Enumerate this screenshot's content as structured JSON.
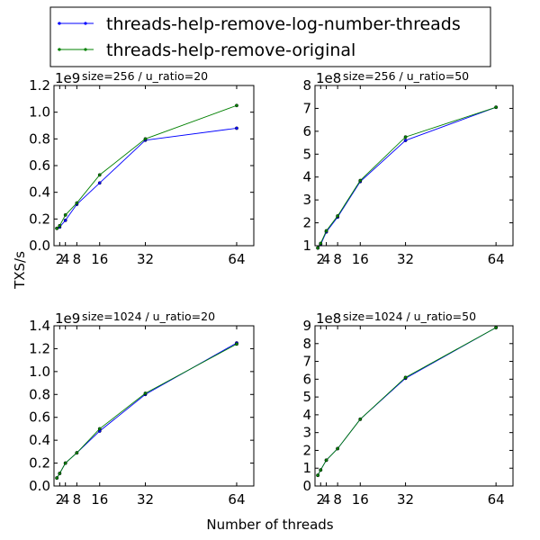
{
  "figure": {
    "xlabel": "Number of threads",
    "ylabel": "TXS/s"
  },
  "legend": {
    "entries": [
      {
        "label": "threads-help-remove-log-number-threads",
        "color": "#0000ff"
      },
      {
        "label": "threads-help-remove-original",
        "color": "#008000"
      }
    ]
  },
  "chart_data": [
    {
      "type": "line",
      "title": "size=256 / u_ratio=20",
      "x": [
        1,
        2,
        4,
        8,
        16,
        32,
        64
      ],
      "xticks": [
        2,
        4,
        8,
        16,
        32,
        64
      ],
      "xlim": [
        0,
        70
      ],
      "ylim": [
        0,
        1.2
      ],
      "yticks": [
        "0.0",
        "0.2",
        "0.4",
        "0.6",
        "0.8",
        "1.0",
        "1.2"
      ],
      "ytick_values": [
        0.0,
        0.2,
        0.4,
        0.6,
        0.8,
        1.0,
        1.2
      ],
      "scale_label": "1e9",
      "series": [
        {
          "name": "threads-help-remove-log-number-threads",
          "color": "#0000ff",
          "values": [
            0.13,
            0.14,
            0.19,
            0.31,
            0.47,
            0.79,
            0.88
          ]
        },
        {
          "name": "threads-help-remove-original",
          "color": "#008000",
          "values": [
            0.13,
            0.15,
            0.23,
            0.32,
            0.53,
            0.8,
            1.05
          ]
        }
      ]
    },
    {
      "type": "line",
      "title": "size=256 / u_ratio=50",
      "x": [
        1,
        2,
        4,
        8,
        16,
        32,
        64
      ],
      "xticks": [
        2,
        4,
        8,
        16,
        32,
        64
      ],
      "xlim": [
        0,
        70
      ],
      "ylim": [
        1,
        8
      ],
      "yticks": [
        "1",
        "2",
        "3",
        "4",
        "5",
        "6",
        "7",
        "8"
      ],
      "ytick_values": [
        1,
        2,
        3,
        4,
        5,
        6,
        7,
        8
      ],
      "scale_label": "1e8",
      "series": [
        {
          "name": "threads-help-remove-log-number-threads",
          "color": "#0000ff",
          "values": [
            0.9,
            1.05,
            1.6,
            2.25,
            3.8,
            5.6,
            7.05
          ]
        },
        {
          "name": "threads-help-remove-original",
          "color": "#008000",
          "values": [
            0.9,
            1.1,
            1.65,
            2.3,
            3.85,
            5.75,
            7.05
          ]
        }
      ]
    },
    {
      "type": "line",
      "title": "size=1024 / u_ratio=20",
      "x": [
        1,
        2,
        4,
        8,
        16,
        32,
        64
      ],
      "xticks": [
        2,
        4,
        8,
        16,
        32,
        64
      ],
      "xlim": [
        0,
        70
      ],
      "ylim": [
        0,
        1.4
      ],
      "yticks": [
        "0.0",
        "0.2",
        "0.4",
        "0.6",
        "0.8",
        "1.0",
        "1.2",
        "1.4"
      ],
      "ytick_values": [
        0.0,
        0.2,
        0.4,
        0.6,
        0.8,
        1.0,
        1.2,
        1.4
      ],
      "scale_label": "1e9",
      "series": [
        {
          "name": "threads-help-remove-log-number-threads",
          "color": "#0000ff",
          "values": [
            0.07,
            0.11,
            0.2,
            0.29,
            0.48,
            0.8,
            1.25
          ]
        },
        {
          "name": "threads-help-remove-original",
          "color": "#008000",
          "values": [
            0.07,
            0.11,
            0.2,
            0.29,
            0.5,
            0.81,
            1.24
          ]
        }
      ]
    },
    {
      "type": "line",
      "title": "size=1024 / u_ratio=50",
      "x": [
        1,
        2,
        4,
        8,
        16,
        32,
        64
      ],
      "xticks": [
        2,
        4,
        8,
        16,
        32,
        64
      ],
      "xlim": [
        0,
        70
      ],
      "ylim": [
        0,
        9
      ],
      "yticks": [
        "0",
        "1",
        "2",
        "3",
        "4",
        "5",
        "6",
        "7",
        "8",
        "9"
      ],
      "ytick_values": [
        0,
        1,
        2,
        3,
        4,
        5,
        6,
        7,
        8,
        9
      ],
      "scale_label": "1e8",
      "series": [
        {
          "name": "threads-help-remove-log-number-threads",
          "color": "#0000ff",
          "values": [
            0.6,
            0.9,
            1.45,
            2.1,
            3.75,
            6.05,
            8.9
          ]
        },
        {
          "name": "threads-help-remove-original",
          "color": "#008000",
          "values": [
            0.6,
            0.9,
            1.45,
            2.1,
            3.75,
            6.1,
            8.9
          ]
        }
      ]
    }
  ]
}
